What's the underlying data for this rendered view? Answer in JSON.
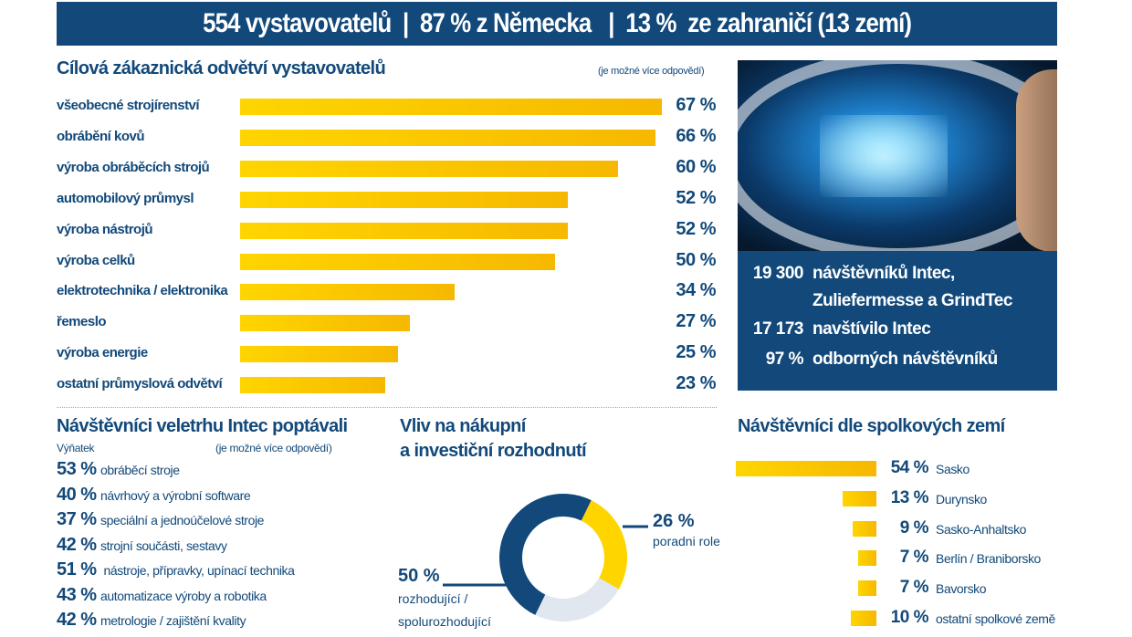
{
  "header": {
    "text": "554 vystavovatelů  |  87 % z Německa   |  13 %  ze zahraničí (13 zemí)"
  },
  "colors": {
    "navy": "#12497a",
    "yellow": "#ffd500",
    "light": "#e1e7ef"
  },
  "chart_data": [
    {
      "type": "bar",
      "orientation": "horizontal",
      "title": "Cílová zákaznická odvětví vystavovatelů",
      "note": "(je možné více odpovědí)",
      "categories": [
        "všeobecné strojírenství",
        "obrábění kovů",
        "výroba obráběcích strojů",
        "automobilový průmysl",
        "výroba nástrojů",
        "výroba celků",
        "elektrotechnika / elektronika",
        "řemeslo",
        "výroba energie",
        "ostatní průmyslová odvětví"
      ],
      "values": [
        67,
        66,
        60,
        52,
        52,
        50,
        34,
        27,
        25,
        23
      ],
      "labels": [
        "67 %",
        "66 %",
        "60 %",
        "52 %",
        "52 %",
        "50 %",
        "34 %",
        "27 %",
        "25 %",
        "23 %"
      ],
      "unit": "%"
    },
    {
      "type": "table",
      "title": "Návštěvníci veletrhu Intec poptávali",
      "subtitle": "Výňatek",
      "note": "(je možné více odpovědí)",
      "rows": [
        {
          "pct": "53 %",
          "label": "obráběcí stroje"
        },
        {
          "pct": "40 %",
          "label": "návrhový a výrobní software"
        },
        {
          "pct": "37 %",
          "label": "speciální a jednoúčelové stroje"
        },
        {
          "pct": "42 %",
          "label": "strojní součásti, sestavy"
        },
        {
          "pct": "51 %",
          "label": " nástroje, přípravky, upínací technika"
        },
        {
          "pct": "43 %",
          "label": "automatizace výroby a robotika"
        },
        {
          "pct": "42 %",
          "label": "metrologie / zajištění kvality"
        }
      ]
    },
    {
      "type": "pie",
      "donut": true,
      "title_line1": "Vliv na nákupní",
      "title_line2": "a investiční rozhodnutí",
      "slices": [
        {
          "name": "poradni role",
          "value": 26,
          "label": "26 %",
          "color": "#ffd500"
        },
        {
          "name": "",
          "value": 24,
          "color": "#e1e7ef"
        },
        {
          "name": "rozhodující /",
          "name2": "spolurozhodující",
          "value": 50,
          "label": "50 %",
          "color": "#12497a"
        }
      ]
    },
    {
      "type": "bar",
      "orientation": "horizontal",
      "title": "Návštěvníci dle spolkových zemí",
      "categories": [
        "Sasko",
        "Durynsko",
        "Sasko-Anhaltsko",
        "Berlín / Braniborsko",
        "Bavorsko",
        "ostatní spolkové země"
      ],
      "values": [
        54,
        13,
        9,
        7,
        7,
        10
      ],
      "labels": [
        "54 %",
        "13 %",
        "9 %",
        "7 %",
        "7 %",
        "10 %"
      ],
      "unit": "%"
    }
  ],
  "stats": [
    {
      "num": "19 300",
      "text": "návštěvníků Intec,"
    },
    {
      "num": "",
      "text": "Zuliefermesse a GrindTec"
    },
    {
      "num": "17 173",
      "text": "navštívilo Intec"
    },
    {
      "num": "97 %",
      "text": "odborných návštěvníků"
    }
  ]
}
